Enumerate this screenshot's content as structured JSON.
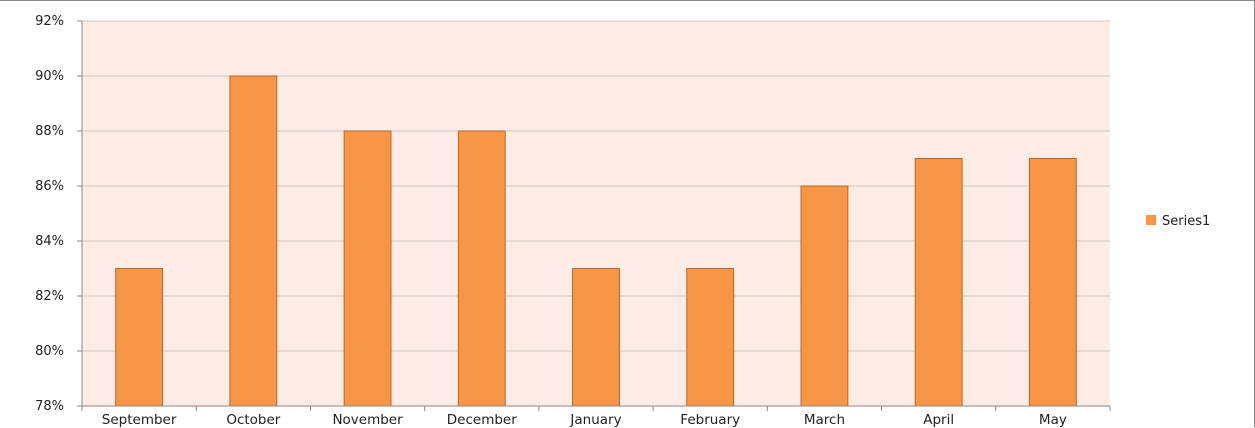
{
  "chart_data": {
    "type": "bar",
    "categories": [
      "September",
      "October",
      "November",
      "December",
      "January",
      "February",
      "March",
      "April",
      "May"
    ],
    "series": [
      {
        "name": "Series1",
        "values": [
          83,
          90,
          88,
          88,
          83,
          83,
          86,
          87,
          87
        ]
      }
    ],
    "y_tick_labels": [
      "78%",
      "80%",
      "82%",
      "84%",
      "86%",
      "88%",
      "90%",
      "92%"
    ],
    "ylim": [
      78,
      92
    ],
    "y_unit": "%",
    "grid": true,
    "legend_position": "right",
    "colors": {
      "bar_fill": "#f79646",
      "bar_stroke": "#b8682a",
      "plot_background": "#fcece5",
      "gridline": "#d0c4be",
      "axis": "#8a8a8a"
    }
  }
}
